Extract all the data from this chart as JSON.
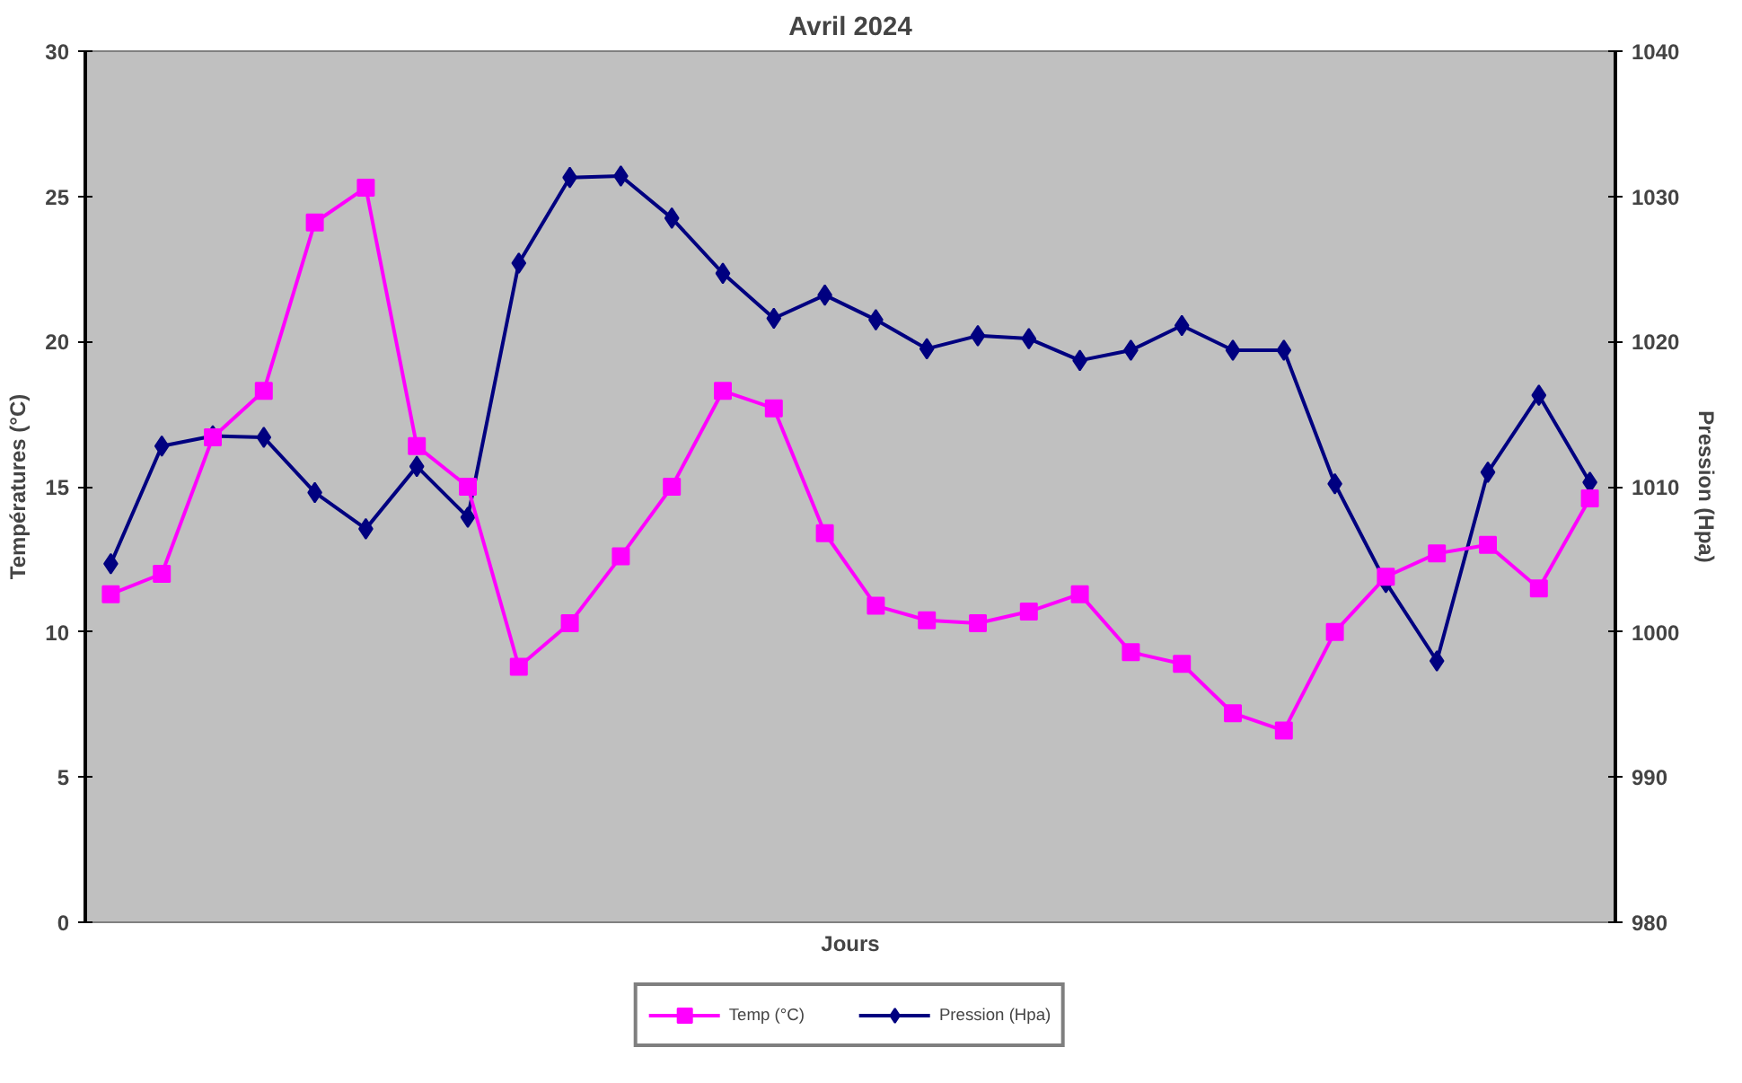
{
  "chart_data": {
    "type": "line",
    "title": "Avril 2024",
    "xlabel": "Jours",
    "ylabel": "Températures (°C)",
    "y2label": "Pression (Hpa)",
    "categories": [
      null,
      null,
      null,
      null,
      null,
      null,
      null,
      null,
      null,
      null,
      null,
      null,
      null,
      null,
      null,
      null,
      null,
      null,
      null,
      null,
      null,
      null,
      null,
      null,
      null,
      null,
      null,
      null,
      null,
      null
    ],
    "ylim": [
      0,
      30
    ],
    "yticks": [
      0,
      5,
      10,
      15,
      20,
      25,
      30
    ],
    "y2lim": [
      980,
      1040
    ],
    "y2ticks": [
      980,
      990,
      1000,
      1010,
      1020,
      1030,
      1040
    ],
    "grid": false,
    "legend": "bottom",
    "line_style": "solid",
    "series": [
      {
        "name": "Temp (°C)",
        "color": "#ff00ff",
        "marker": "square",
        "values": [
          11.3,
          12.0,
          16.7,
          18.3,
          24.1,
          25.3,
          16.4,
          15.0,
          8.8,
          10.3,
          12.6,
          15.0,
          18.3,
          17.7,
          13.4,
          10.9,
          10.4,
          10.3,
          10.7,
          11.3,
          9.3,
          8.9,
          7.2,
          6.6,
          10.0,
          11.9,
          12.7,
          13.0,
          11.5,
          14.6
        ]
      },
      {
        "name": "Pression (Hpa)",
        "color": "#000080",
        "marker": "diamond",
        "axis": "y2",
        "values": [
          1004.7,
          1012.8,
          1013.5,
          1013.4,
          1009.6,
          1007.1,
          1011.4,
          1007.9,
          1025.4,
          1031.3,
          1031.4,
          1028.5,
          1024.7,
          1021.6,
          1023.2,
          1021.5,
          1019.5,
          1020.4,
          1020.2,
          1018.7,
          1019.4,
          1021.1,
          1019.4,
          1019.4,
          1010.2,
          1003.4,
          998.0,
          1011.0,
          1016.3,
          1010.3
        ]
      }
    ]
  }
}
